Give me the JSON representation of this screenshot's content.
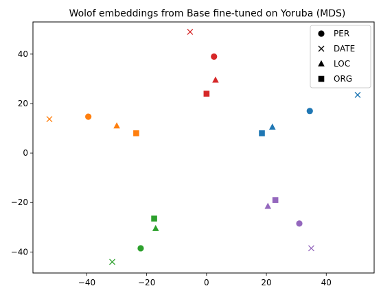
{
  "chart_data": {
    "type": "scatter",
    "title": "Wolof embeddings from Base fine-tuned on Yoruba (MDS)",
    "xlabel": "",
    "ylabel": "",
    "xlim": [
      -58,
      56
    ],
    "ylim": [
      -48.5,
      53
    ],
    "xticks": [
      -40,
      -20,
      0,
      20,
      40
    ],
    "yticks": [
      -40,
      -20,
      0,
      20,
      40
    ],
    "grid": false,
    "legend_position": "top-right",
    "legend": [
      {
        "label": "PER",
        "marker": "circle"
      },
      {
        "label": "DATE",
        "marker": "x"
      },
      {
        "label": "LOC",
        "marker": "triangle"
      },
      {
        "label": "ORG",
        "marker": "square"
      }
    ],
    "colors": [
      "#1f77b4",
      "#ff7f0e",
      "#2ca02c",
      "#d62728",
      "#9467bd"
    ],
    "points": [
      {
        "x": 34.5,
        "y": 17,
        "marker": "circle",
        "color": "#1f77b4"
      },
      {
        "x": 50.5,
        "y": 23.5,
        "marker": "x",
        "color": "#1f77b4"
      },
      {
        "x": 22,
        "y": 10.5,
        "marker": "triangle",
        "color": "#1f77b4"
      },
      {
        "x": 18.5,
        "y": 8,
        "marker": "square",
        "color": "#1f77b4"
      },
      {
        "x": -39.5,
        "y": 14.7,
        "marker": "circle",
        "color": "#ff7f0e"
      },
      {
        "x": -52.5,
        "y": 13.7,
        "marker": "x",
        "color": "#ff7f0e"
      },
      {
        "x": -30,
        "y": 11,
        "marker": "triangle",
        "color": "#ff7f0e"
      },
      {
        "x": -23.5,
        "y": 8,
        "marker": "square",
        "color": "#ff7f0e"
      },
      {
        "x": -22,
        "y": -38.5,
        "marker": "circle",
        "color": "#2ca02c"
      },
      {
        "x": -31.5,
        "y": -44,
        "marker": "x",
        "color": "#2ca02c"
      },
      {
        "x": -17,
        "y": -30.5,
        "marker": "triangle",
        "color": "#2ca02c"
      },
      {
        "x": -17.5,
        "y": -26.5,
        "marker": "square",
        "color": "#2ca02c"
      },
      {
        "x": 2.5,
        "y": 39,
        "marker": "circle",
        "color": "#d62728"
      },
      {
        "x": -5.5,
        "y": 49,
        "marker": "x",
        "color": "#d62728"
      },
      {
        "x": 3,
        "y": 29.5,
        "marker": "triangle",
        "color": "#d62728"
      },
      {
        "x": 0,
        "y": 24,
        "marker": "square",
        "color": "#d62728"
      },
      {
        "x": 31,
        "y": -28.5,
        "marker": "circle",
        "color": "#9467bd"
      },
      {
        "x": 35,
        "y": -38.5,
        "marker": "x",
        "color": "#9467bd"
      },
      {
        "x": 20.5,
        "y": -21.5,
        "marker": "triangle",
        "color": "#9467bd"
      },
      {
        "x": 23,
        "y": -19,
        "marker": "square",
        "color": "#9467bd"
      }
    ]
  }
}
